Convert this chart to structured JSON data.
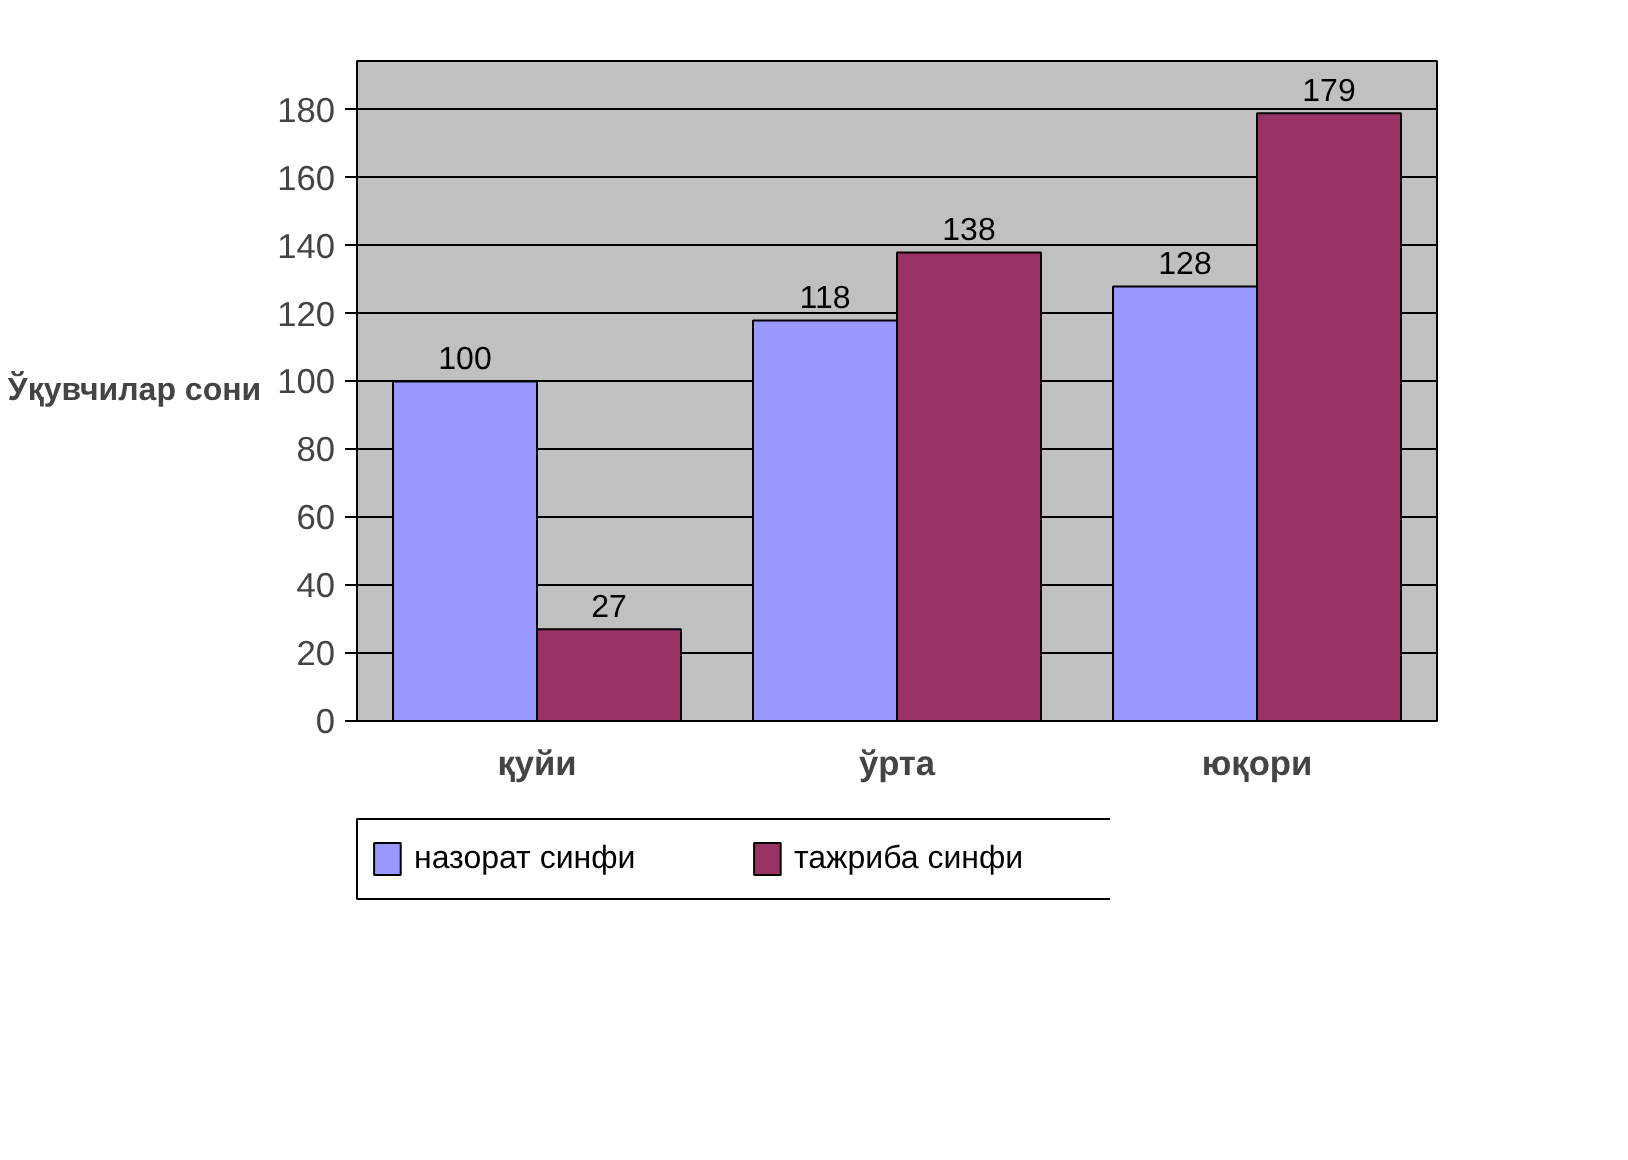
{
  "chart_data": {
    "type": "bar",
    "ylabel": "Ўқувчилар сони",
    "categories": [
      "қуйи",
      "ўрта",
      "юқори"
    ],
    "series": [
      {
        "name": "назорат синфи",
        "color": "#9999ff",
        "values": [
          100,
          118,
          128
        ]
      },
      {
        "name": "тажриба синфи",
        "color": "#993366",
        "values": [
          27,
          138,
          179
        ]
      }
    ],
    "ylim": [
      0,
      180
    ],
    "yticks": [
      0,
      20,
      40,
      60,
      80,
      100,
      120,
      140,
      160,
      180
    ],
    "grid": "y",
    "legend": "bottom",
    "data_labels": true
  }
}
